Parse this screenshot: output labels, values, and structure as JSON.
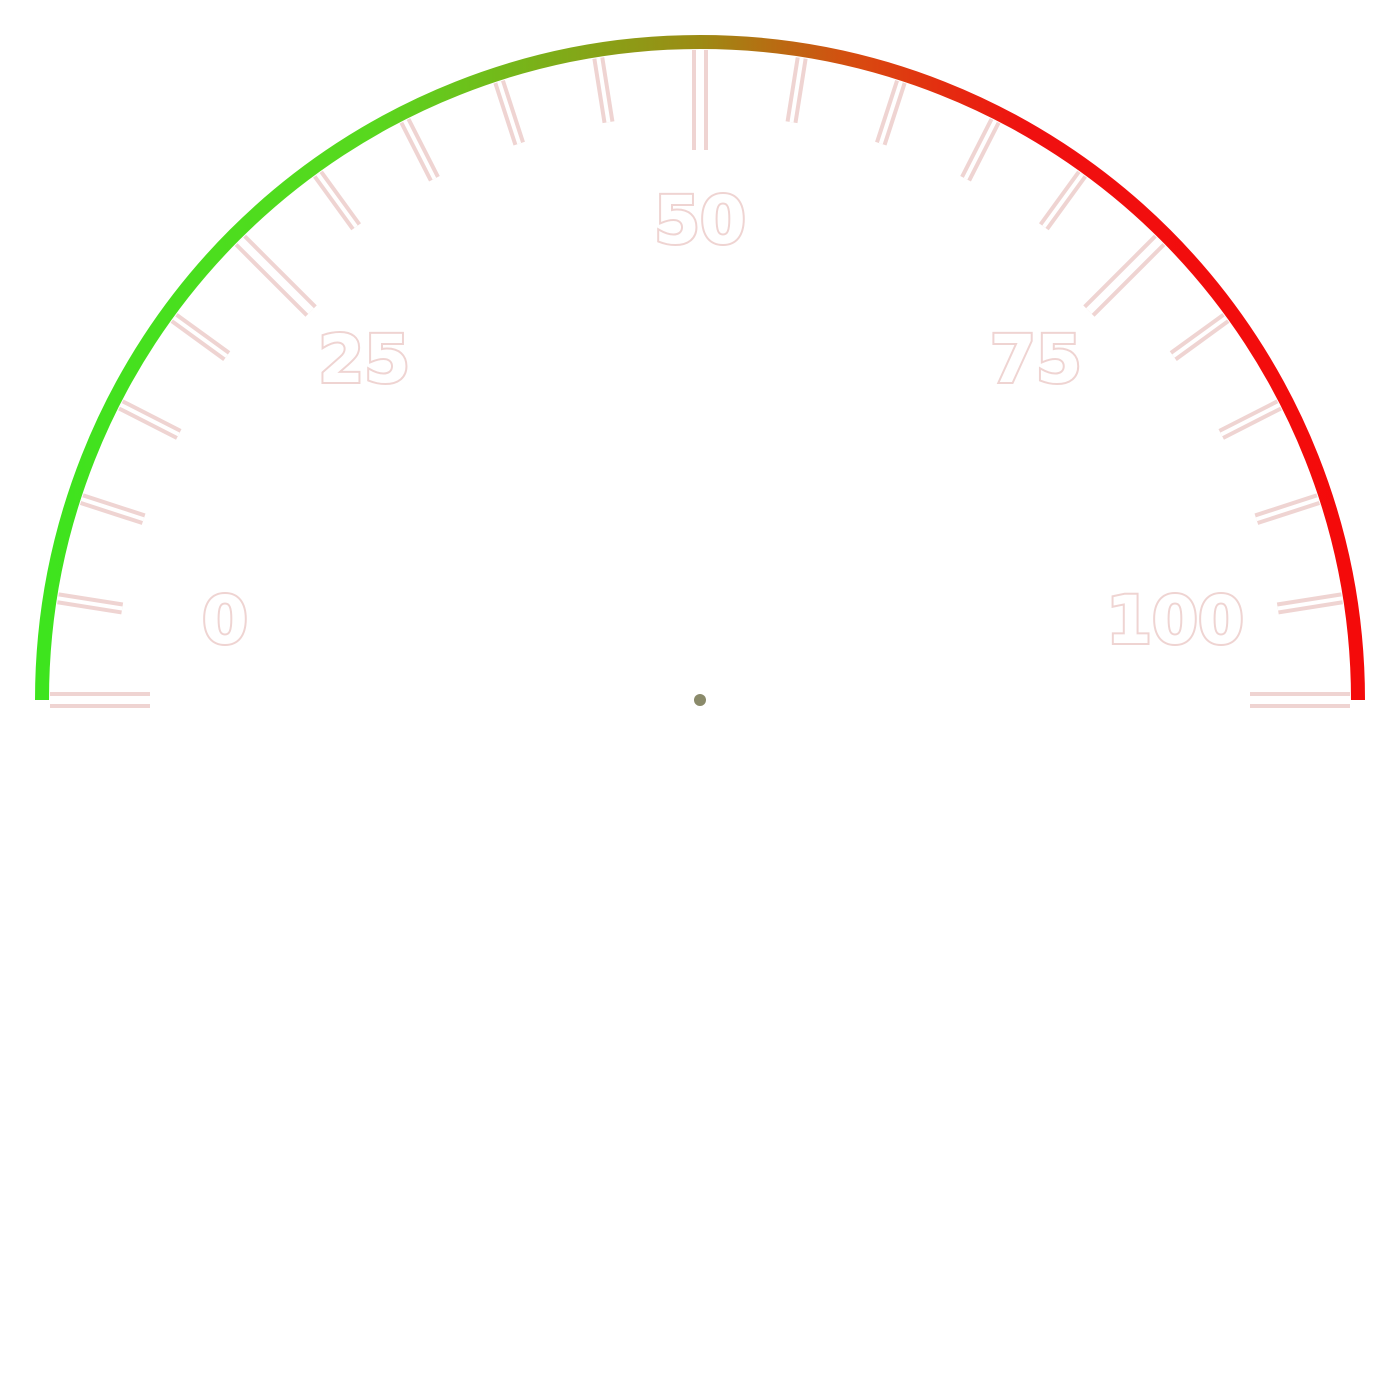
{
  "chart_data": {
    "type": "gauge",
    "min": 0,
    "max": 100,
    "major_ticks": [
      0,
      25,
      50,
      75,
      100
    ],
    "major_tick_labels": [
      "0",
      "25",
      "50",
      "75",
      "100"
    ],
    "minor_ticks": [
      5,
      10,
      15,
      20,
      30,
      35,
      40,
      45,
      55,
      60,
      65,
      70,
      80,
      85,
      90,
      95
    ],
    "value": null,
    "needle_visible": false,
    "arc_gradient": [
      {
        "stop": 0,
        "color": "#3ee41e"
      },
      {
        "stop": 0.25,
        "color": "#58d81e"
      },
      {
        "stop": 0.5,
        "color": "#9c8a14"
      },
      {
        "stop": 0.62,
        "color": "#d84a10"
      },
      {
        "stop": 0.75,
        "color": "#f01010"
      },
      {
        "stop": 1,
        "color": "#f40a0a"
      }
    ],
    "tick_color": "#efd4d2",
    "hub_color": "#8a8a6a"
  }
}
